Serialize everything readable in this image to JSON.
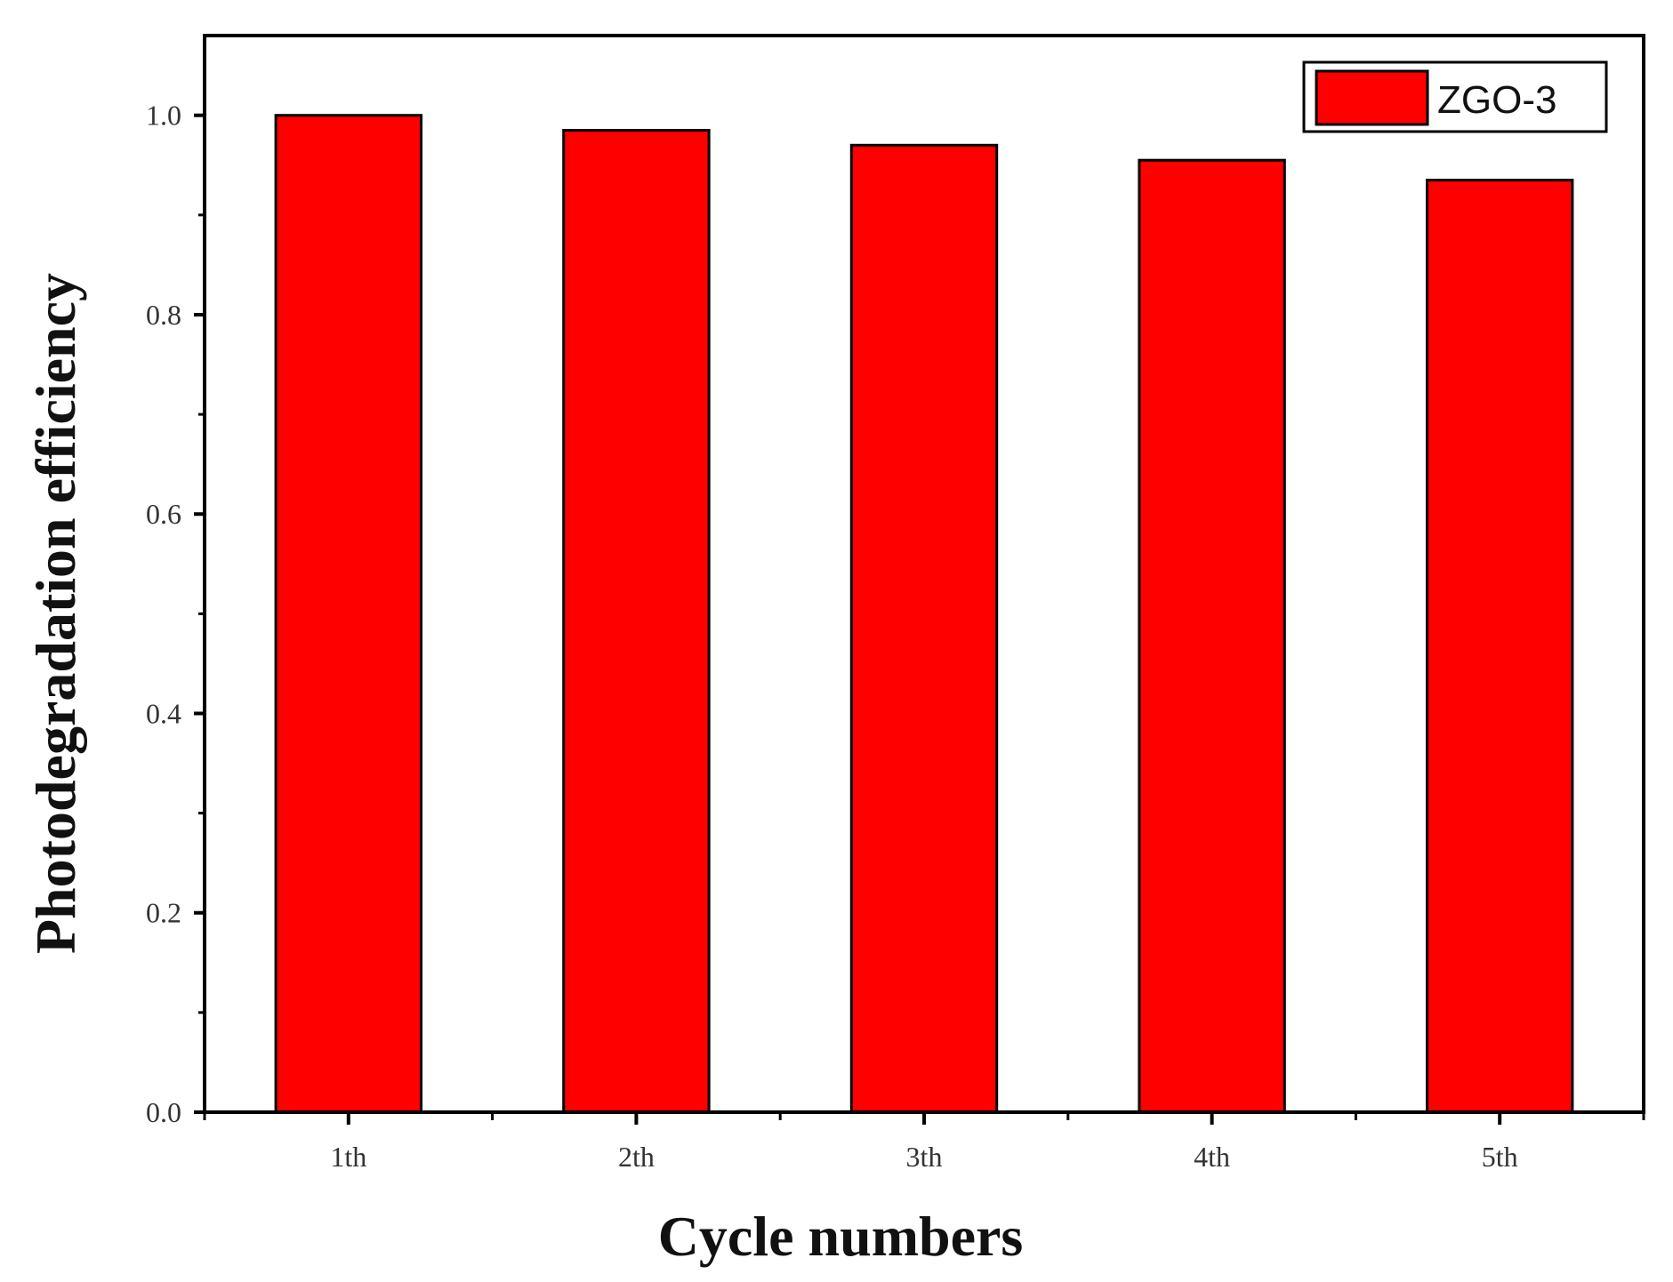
{
  "chart_data": {
    "type": "bar",
    "categories": [
      "1th",
      "2th",
      "3th",
      "4th",
      "5th"
    ],
    "series": [
      {
        "name": "ZGO-3",
        "values": [
          1.0,
          0.985,
          0.97,
          0.955,
          0.935
        ]
      }
    ],
    "xlabel": "Cycle numbers",
    "ylabel": "Photodegradation efficiency",
    "ylim": [
      0.0,
      1.08
    ],
    "yticks": [
      0.0,
      0.2,
      0.4,
      0.6,
      0.8,
      1.0
    ],
    "ytick_labels": [
      "0.0",
      "0.2",
      "0.4",
      "0.6",
      "0.8",
      "1.0"
    ],
    "grid": false,
    "legend": "top-right",
    "colors": {
      "bar": "#ff0000",
      "bar_edge": "#000000",
      "frame": "#000000"
    }
  }
}
